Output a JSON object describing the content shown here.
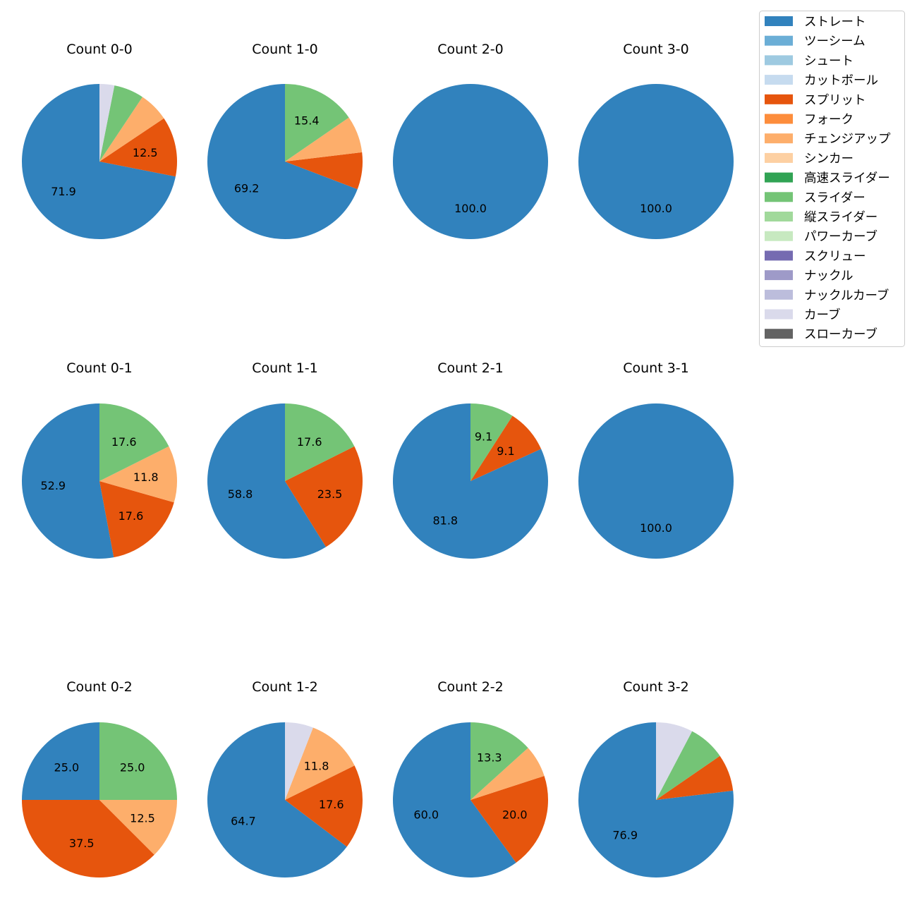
{
  "chart_data": {
    "type": "pie",
    "legend_position": "top-right",
    "categories": [
      "ストレート",
      "ツーシーム",
      "シュート",
      "カットボール",
      "スプリット",
      "フォーク",
      "チェンジアップ",
      "シンカー",
      "高速スライダー",
      "スライダー",
      "縦スライダー",
      "パワーカーブ",
      "スクリュー",
      "ナックル",
      "ナックルカーブ",
      "カーブ",
      "スローカーブ"
    ],
    "colors": [
      "#3182bd",
      "#6baed6",
      "#9ecae1",
      "#c6dbef",
      "#e6550d",
      "#fd8d3c",
      "#fdae6b",
      "#fdd0a2",
      "#31a354",
      "#74c476",
      "#a1d99b",
      "#c7e9c0",
      "#756bb1",
      "#9e9ac8",
      "#bcbddc",
      "#dadaeb",
      "#636363"
    ],
    "charts": [
      {
        "title": "Count 0-0",
        "values": [
          71.9,
          0,
          0,
          0,
          12.5,
          0,
          6.25,
          0,
          0,
          6.25,
          0,
          0,
          0,
          0,
          0,
          3.1,
          0
        ],
        "labels": [
          "71.9",
          "",
          "",
          "",
          "12.5",
          "",
          "",
          "",
          "",
          "",
          "",
          "",
          "",
          "",
          "",
          "",
          ""
        ]
      },
      {
        "title": "Count 1-0",
        "values": [
          69.2,
          0,
          0,
          0,
          7.7,
          0,
          7.7,
          0,
          0,
          15.4,
          0,
          0,
          0,
          0,
          0,
          0,
          0
        ],
        "labels": [
          "69.2",
          "",
          "",
          "",
          "",
          "",
          "",
          "",
          "",
          "15.4",
          "",
          "",
          "",
          "",
          "",
          "",
          ""
        ]
      },
      {
        "title": "Count 2-0",
        "values": [
          100,
          0,
          0,
          0,
          0,
          0,
          0,
          0,
          0,
          0,
          0,
          0,
          0,
          0,
          0,
          0,
          0
        ],
        "labels": [
          "100.0",
          "",
          "",
          "",
          "",
          "",
          "",
          "",
          "",
          "",
          "",
          "",
          "",
          "",
          "",
          "",
          ""
        ]
      },
      {
        "title": "Count 3-0",
        "values": [
          100,
          0,
          0,
          0,
          0,
          0,
          0,
          0,
          0,
          0,
          0,
          0,
          0,
          0,
          0,
          0,
          0
        ],
        "labels": [
          "100.0",
          "",
          "",
          "",
          "",
          "",
          "",
          "",
          "",
          "",
          "",
          "",
          "",
          "",
          "",
          "",
          ""
        ]
      },
      {
        "title": "Count 0-1",
        "values": [
          52.9,
          0,
          0,
          0,
          17.6,
          0,
          11.8,
          0,
          0,
          17.6,
          0,
          0,
          0,
          0,
          0,
          0,
          0
        ],
        "labels": [
          "52.9",
          "",
          "",
          "",
          "17.6",
          "",
          "11.8",
          "",
          "",
          "17.6",
          "",
          "",
          "",
          "",
          "",
          "",
          ""
        ]
      },
      {
        "title": "Count 1-1",
        "values": [
          58.8,
          0,
          0,
          0,
          23.5,
          0,
          0,
          0,
          0,
          17.6,
          0,
          0,
          0,
          0,
          0,
          0,
          0
        ],
        "labels": [
          "58.8",
          "",
          "",
          "",
          "23.5",
          "",
          "",
          "",
          "",
          "17.6",
          "",
          "",
          "",
          "",
          "",
          "",
          ""
        ]
      },
      {
        "title": "Count 2-1",
        "values": [
          81.8,
          0,
          0,
          0,
          9.1,
          0,
          0,
          0,
          0,
          9.1,
          0,
          0,
          0,
          0,
          0,
          0,
          0
        ],
        "labels": [
          "81.8",
          "",
          "",
          "",
          "9.1",
          "",
          "",
          "",
          "",
          "9.1",
          "",
          "",
          "",
          "",
          "",
          "",
          ""
        ]
      },
      {
        "title": "Count 3-1",
        "values": [
          100,
          0,
          0,
          0,
          0,
          0,
          0,
          0,
          0,
          0,
          0,
          0,
          0,
          0,
          0,
          0,
          0
        ],
        "labels": [
          "100.0",
          "",
          "",
          "",
          "",
          "",
          "",
          "",
          "",
          "",
          "",
          "",
          "",
          "",
          "",
          "",
          ""
        ]
      },
      {
        "title": "Count 0-2",
        "values": [
          25.0,
          0,
          0,
          0,
          37.5,
          0,
          12.5,
          0,
          0,
          25.0,
          0,
          0,
          0,
          0,
          0,
          0,
          0
        ],
        "labels": [
          "25.0",
          "",
          "",
          "",
          "37.5",
          "",
          "12.5",
          "",
          "",
          "25.0",
          "",
          "",
          "",
          "",
          "",
          "",
          ""
        ]
      },
      {
        "title": "Count 1-2",
        "values": [
          64.7,
          0,
          0,
          0,
          17.6,
          0,
          11.8,
          0,
          0,
          0,
          0,
          0,
          0,
          0,
          0,
          5.9,
          0
        ],
        "labels": [
          "64.7",
          "",
          "",
          "",
          "17.6",
          "",
          "11.8",
          "",
          "",
          "",
          "",
          "",
          "",
          "",
          "",
          "",
          ""
        ]
      },
      {
        "title": "Count 2-2",
        "values": [
          60.0,
          0,
          0,
          0,
          20.0,
          0,
          6.7,
          0,
          0,
          13.3,
          0,
          0,
          0,
          0,
          0,
          0,
          0
        ],
        "labels": [
          "60.0",
          "",
          "",
          "",
          "20.0",
          "",
          "",
          "",
          "",
          "13.3",
          "",
          "",
          "",
          "",
          "",
          "",
          ""
        ]
      },
      {
        "title": "Count 3-2",
        "values": [
          76.9,
          0,
          0,
          0,
          7.7,
          0,
          0,
          0,
          0,
          7.7,
          0,
          0,
          0,
          0,
          0,
          7.7,
          0
        ],
        "labels": [
          "76.9",
          "",
          "",
          "",
          "",
          "",
          "",
          "",
          "",
          "",
          "",
          "",
          "",
          "",
          "",
          "",
          ""
        ]
      }
    ]
  }
}
